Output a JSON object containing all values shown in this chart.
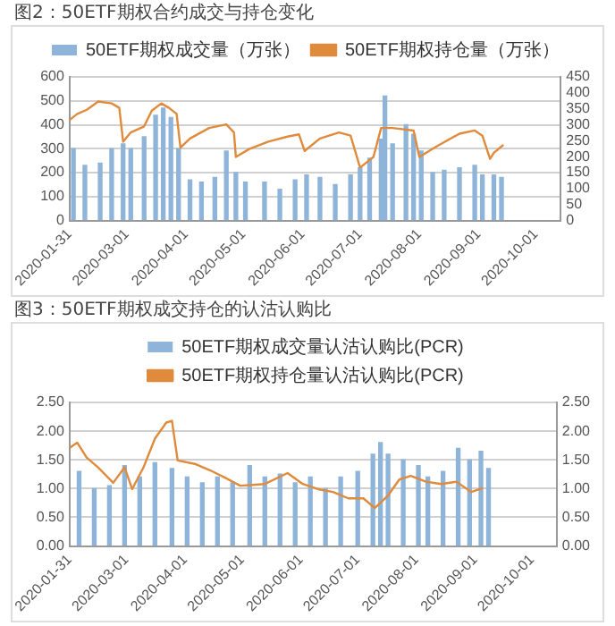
{
  "chart_data": [
    {
      "type": "bar",
      "title": "图2：50ETF期权合约成交与持仓变化",
      "legend": "top",
      "grid": "y",
      "xlim": [
        "2020-01-31",
        "2020-10-14"
      ],
      "xticks": [
        "2020-01-31",
        "2020-03-01",
        "2020-04-01",
        "2020-05-01",
        "2020-06-01",
        "2020-07-01",
        "2020-08-01",
        "2020-09-01",
        "2020-10-01"
      ],
      "ylim": [
        0,
        600
      ],
      "yticks": [
        0,
        100,
        200,
        300,
        400,
        500,
        600
      ],
      "y2lim": [
        0,
        450
      ],
      "y2ticks": [
        0,
        50,
        100,
        150,
        200,
        250,
        300,
        350,
        400,
        450
      ],
      "series": [
        {
          "name": "50ETF期权成交量（万张）",
          "color": "#8fb4d9",
          "x": [
            "2020-02-02",
            "2020-02-08",
            "2020-02-16",
            "2020-02-22",
            "2020-02-28",
            "2020-03-03",
            "2020-03-10",
            "2020-03-16",
            "2020-03-20",
            "2020-03-24",
            "2020-03-28",
            "2020-04-03",
            "2020-04-09",
            "2020-04-16",
            "2020-04-22",
            "2020-04-27",
            "2020-05-02",
            "2020-05-12",
            "2020-05-20",
            "2020-05-28",
            "2020-06-03",
            "2020-06-10",
            "2020-06-18",
            "2020-06-26",
            "2020-07-01",
            "2020-07-06",
            "2020-07-12",
            "2020-07-14",
            "2020-07-18",
            "2020-07-25",
            "2020-07-29",
            "2020-08-02",
            "2020-08-08",
            "2020-08-14",
            "2020-08-22",
            "2020-08-30",
            "2020-09-03",
            "2020-09-09",
            "2020-09-13"
          ],
          "values": [
            300,
            230,
            240,
            300,
            320,
            300,
            350,
            440,
            470,
            430,
            300,
            170,
            160,
            180,
            290,
            200,
            160,
            160,
            130,
            170,
            190,
            180,
            150,
            190,
            220,
            260,
            340,
            520,
            320,
            400,
            360,
            290,
            200,
            210,
            220,
            230,
            190,
            190,
            180
          ]
        },
        {
          "name": "50ETF期权持仓量（万张）",
          "type": "line",
          "axis": "y2",
          "color": "#e08a3c",
          "x": [
            "2020-01-31",
            "2020-02-04",
            "2020-02-09",
            "2020-02-15",
            "2020-02-22",
            "2020-02-26",
            "2020-02-28",
            "2020-03-03",
            "2020-03-10",
            "2020-03-14",
            "2020-03-19",
            "2020-03-23",
            "2020-03-27",
            "2020-03-29",
            "2020-04-03",
            "2020-04-13",
            "2020-04-22",
            "2020-04-26",
            "2020-04-27",
            "2020-05-04",
            "2020-05-14",
            "2020-05-24",
            "2020-05-30",
            "2020-06-02",
            "2020-06-10",
            "2020-06-20",
            "2020-06-26",
            "2020-07-01",
            "2020-07-08",
            "2020-07-12",
            "2020-07-18",
            "2020-07-29",
            "2020-08-01",
            "2020-08-10",
            "2020-08-22",
            "2020-08-30",
            "2020-09-03",
            "2020-09-07",
            "2020-09-09",
            "2020-09-14"
          ],
          "values": [
            315,
            334,
            347,
            373,
            367,
            353,
            247,
            276,
            295,
            344,
            367,
            353,
            334,
            228,
            257,
            290,
            301,
            276,
            199,
            224,
            247,
            263,
            270,
            218,
            257,
            276,
            266,
            166,
            199,
            290,
            290,
            282,
            199,
            232,
            272,
            282,
            266,
            193,
            212,
            237
          ]
        }
      ]
    },
    {
      "type": "bar",
      "title": "图3：50ETF期权成交持仓的认沽认购比",
      "legend": "top",
      "grid": "y",
      "xlim": [
        "2020-01-31",
        "2020-10-14"
      ],
      "xticks": [
        "2020-01-31",
        "2020-03-01",
        "2020-04-01",
        "2020-05-01",
        "2020-06-01",
        "2020-07-01",
        "2020-08-01",
        "2020-09-01",
        "2020-10-01"
      ],
      "ylim": [
        0,
        2.5
      ],
      "yticks": [
        {
          "value": 0,
          "label": "0.00"
        },
        {
          "value": 0.5,
          "label": "0.50"
        },
        {
          "value": 1,
          "label": "1.00"
        },
        {
          "value": 1.5,
          "label": "1.50"
        },
        {
          "value": 2,
          "label": "2.00"
        },
        {
          "value": 2.5,
          "label": "2.50"
        }
      ],
      "y2lim": [
        0,
        2.5
      ],
      "y2ticks": [
        {
          "value": 0,
          "label": "0.00"
        },
        {
          "value": 0.5,
          "label": "0.50"
        },
        {
          "value": 1,
          "label": "1.00"
        },
        {
          "value": 1.5,
          "label": "1.50"
        },
        {
          "value": 2,
          "label": "2.00"
        },
        {
          "value": 2.5,
          "label": "2.50"
        }
      ],
      "series": [
        {
          "name": "50ETF期权成交量认沽认购比(PCR)",
          "color": "#8fb4d9",
          "x": [
            "2020-02-05",
            "2020-02-13",
            "2020-02-21",
            "2020-02-29",
            "2020-03-08",
            "2020-03-16",
            "2020-03-25",
            "2020-04-02",
            "2020-04-10",
            "2020-04-18",
            "2020-04-26",
            "2020-05-05",
            "2020-05-13",
            "2020-05-21",
            "2020-05-29",
            "2020-06-06",
            "2020-06-14",
            "2020-06-22",
            "2020-07-01",
            "2020-07-09",
            "2020-07-13",
            "2020-07-17",
            "2020-07-25",
            "2020-08-02",
            "2020-08-07",
            "2020-08-15",
            "2020-08-23",
            "2020-08-29",
            "2020-09-04",
            "2020-09-08"
          ],
          "values": [
            1.3,
            1.0,
            1.05,
            1.4,
            1.2,
            1.45,
            1.35,
            1.2,
            1.1,
            1.2,
            1.1,
            1.4,
            1.2,
            1.25,
            1.1,
            1.2,
            1.0,
            1.2,
            1.3,
            1.6,
            1.8,
            1.6,
            1.5,
            1.4,
            1.2,
            1.3,
            1.7,
            1.5,
            1.65,
            1.35
          ]
        },
        {
          "name": "50ETF期权持仓量认沽认购比(PCR)",
          "type": "line",
          "axis": "y2",
          "color": "#e08a3c",
          "x": [
            "2020-01-31",
            "2020-02-04",
            "2020-02-09",
            "2020-02-15",
            "2020-02-23",
            "2020-02-29",
            "2020-03-04",
            "2020-03-10",
            "2020-03-16",
            "2020-03-22",
            "2020-03-25",
            "2020-03-28",
            "2020-04-06",
            "2020-04-14",
            "2020-04-22",
            "2020-04-30",
            "2020-05-13",
            "2020-05-25",
            "2020-06-02",
            "2020-06-10",
            "2020-06-18",
            "2020-06-26",
            "2020-07-04",
            "2020-07-10",
            "2020-07-17",
            "2020-07-23",
            "2020-07-29",
            "2020-08-06",
            "2020-08-14",
            "2020-08-22",
            "2020-08-30",
            "2020-09-05"
          ],
          "values": [
            1.71,
            1.8,
            1.54,
            1.37,
            1.1,
            1.37,
            0.99,
            1.37,
            1.87,
            2.15,
            2.18,
            1.49,
            1.43,
            1.32,
            1.19,
            1.05,
            1.08,
            1.27,
            1.08,
            0.99,
            0.94,
            0.83,
            0.83,
            0.66,
            0.88,
            1.16,
            1.22,
            1.12,
            1.08,
            1.12,
            0.94,
            1.01
          ]
        }
      ]
    }
  ]
}
